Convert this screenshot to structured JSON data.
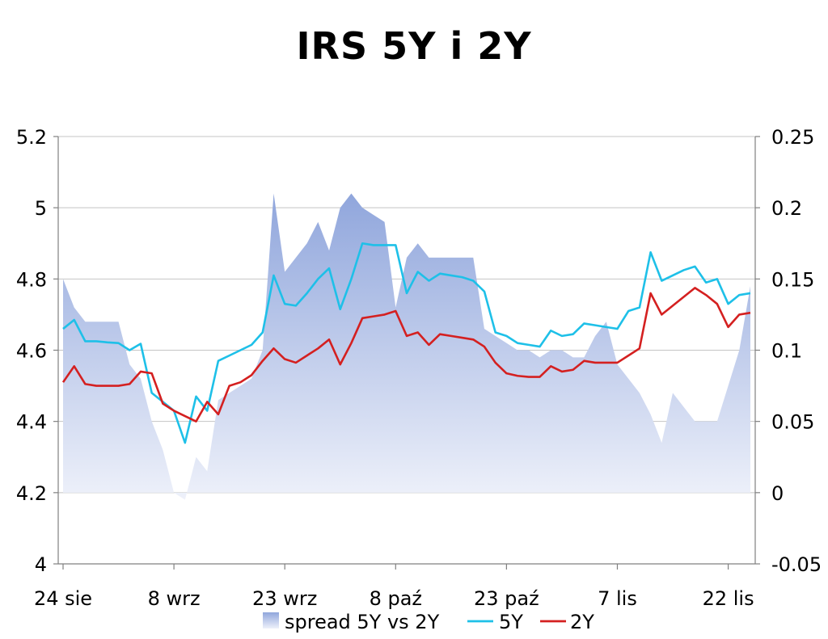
{
  "chart_data": {
    "type": "line",
    "title": "IRS 5Y i 2Y",
    "x_ticks": [
      "24 sie",
      "8 wrz",
      "23 wrz",
      "8 paź",
      "23 paź",
      "7 lis",
      "22 lis"
    ],
    "y_left": {
      "min": 4,
      "max": 5.2,
      "ticks": [
        "4",
        "4.2",
        "4.4",
        "4.6",
        "4.8",
        "5",
        "5.2"
      ]
    },
    "y_right": {
      "min": -0.05,
      "max": 0.25,
      "ticks": [
        "-0.05",
        "0",
        "0.05",
        "0.1",
        "0.15",
        "0.2",
        "0.25"
      ]
    },
    "grid": "horizontal",
    "legend_position": "bottom",
    "x_index_range": [
      0,
      62
    ],
    "x_tick_index": [
      0,
      10,
      20,
      30,
      40,
      50,
      60
    ],
    "series": [
      {
        "name": "spread 5Y vs 2Y",
        "kind": "area",
        "axis": "right",
        "color": "#9aaede",
        "values": [
          0.15,
          0.13,
          0.12,
          0.12,
          0.12,
          0.12,
          0.09,
          0.08,
          0.05,
          0.03,
          0.0,
          -0.005,
          0.025,
          0.015,
          0.065,
          0.07,
          0.075,
          0.08,
          0.1,
          0.21,
          0.155,
          0.165,
          0.175,
          0.19,
          0.17,
          0.2,
          0.21,
          0.2,
          0.195,
          0.19,
          0.13,
          0.165,
          0.175,
          0.165,
          0.165,
          0.165,
          0.165,
          0.165,
          0.115,
          0.11,
          0.105,
          0.1,
          0.1,
          0.095,
          0.1,
          0.1,
          0.095,
          0.095,
          0.11,
          0.12,
          0.09,
          0.08,
          0.07,
          0.055,
          0.035,
          0.07,
          0.06,
          0.05,
          0.05,
          0.05,
          0.075,
          0.1,
          0.145
        ]
      },
      {
        "name": "5Y",
        "kind": "line",
        "axis": "left",
        "color": "#1ec0e8",
        "values": [
          4.66,
          4.685,
          4.625,
          4.625,
          4.622,
          4.62,
          4.6,
          4.618,
          4.48,
          4.455,
          4.43,
          4.34,
          4.47,
          4.43,
          4.57,
          4.585,
          4.6,
          4.615,
          4.65,
          4.81,
          4.73,
          4.725,
          4.76,
          4.8,
          4.83,
          4.715,
          4.8,
          4.9,
          4.895,
          4.895,
          4.895,
          4.76,
          4.82,
          4.795,
          4.815,
          4.81,
          4.805,
          4.795,
          4.765,
          4.65,
          4.64,
          4.62,
          4.615,
          4.61,
          4.655,
          4.64,
          4.645,
          4.675,
          4.67,
          4.665,
          4.66,
          4.71,
          4.72,
          4.875,
          4.795,
          4.81,
          4.825,
          4.835,
          4.79,
          4.8,
          4.73,
          4.755,
          4.76
        ]
      },
      {
        "name": "2Y",
        "kind": "line",
        "axis": "left",
        "color": "#d42020",
        "values": [
          4.51,
          4.555,
          4.505,
          4.5,
          4.5,
          4.5,
          4.505,
          4.54,
          4.535,
          4.45,
          4.43,
          4.415,
          4.4,
          4.455,
          4.42,
          4.5,
          4.51,
          4.53,
          4.57,
          4.605,
          4.575,
          4.565,
          4.585,
          4.605,
          4.63,
          4.56,
          4.62,
          4.69,
          4.695,
          4.7,
          4.71,
          4.64,
          4.65,
          4.615,
          4.645,
          4.64,
          4.635,
          4.63,
          4.61,
          4.565,
          4.535,
          4.528,
          4.525,
          4.525,
          4.555,
          4.54,
          4.545,
          4.57,
          4.565,
          4.565,
          4.565,
          4.585,
          4.605,
          4.76,
          4.7,
          4.725,
          4.75,
          4.775,
          4.755,
          4.73,
          4.665,
          4.7,
          4.705
        ]
      }
    ]
  }
}
